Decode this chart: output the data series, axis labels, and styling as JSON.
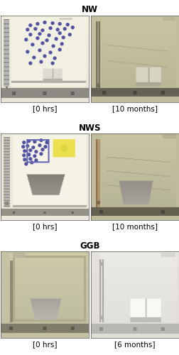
{
  "titles": [
    "NW",
    "NWS",
    "GGB"
  ],
  "captions": [
    "[0 hrs]",
    "[10 months]",
    "[0 hrs]",
    "[10 months]",
    "[0 hrs]",
    "[6 months]"
  ],
  "title_fontsize": 8.5,
  "caption_fontsize": 7.5,
  "title_fontweight": "bold",
  "bg_color": "#ffffff",
  "panel_colors": {
    "nw_0hrs_bg": [
      240,
      238,
      225
    ],
    "nw_10mo_bg": [
      195,
      192,
      160
    ],
    "nws_0hrs_bg": [
      238,
      236,
      222
    ],
    "nws_10mo_bg": [
      192,
      190,
      160
    ],
    "ggb_0hrs_bg": [
      200,
      198,
      168
    ],
    "ggb_6mo_bg": [
      228,
      228,
      218
    ]
  }
}
